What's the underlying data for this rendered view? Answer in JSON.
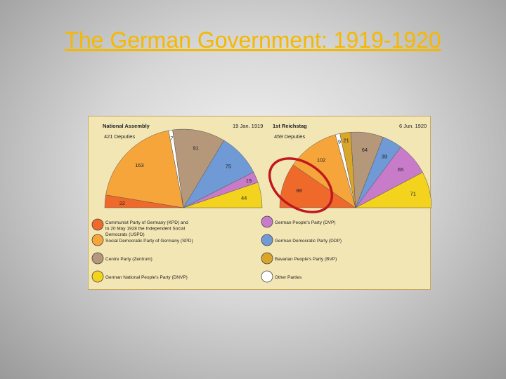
{
  "slide": {
    "title": "The German Government: 1919-1920"
  },
  "chart_data": [
    {
      "type": "pie",
      "shape": "semicircle",
      "title": "National Assembly",
      "date": "19 Jan. 1919",
      "total_label": "421 Deputies",
      "slices": [
        {
          "party": "KPD/USPD",
          "value": 22,
          "label": "22",
          "color": "#ef6a2a"
        },
        {
          "party": "SPD",
          "value": 163,
          "label": "163",
          "color": "#f6a53a"
        },
        {
          "party": "Other Parties",
          "value": 7,
          "label": "7",
          "color": "#ffffff"
        },
        {
          "party": "Centre Party (Zentrum)",
          "value": 91,
          "label": "91",
          "color": "#b5977a"
        },
        {
          "party": "DDP",
          "value": 75,
          "label": "75",
          "color": "#6f9ad6"
        },
        {
          "party": "DVP",
          "value": 19,
          "label": "19",
          "color": "#c77bc9"
        },
        {
          "party": "DNVP",
          "value": 44,
          "label": "44",
          "color": "#f3d31d"
        }
      ]
    },
    {
      "type": "pie",
      "shape": "semicircle",
      "title": "1st Reichstag",
      "date": "6 Jun. 1920",
      "total_label": "459 Deputies",
      "slices": [
        {
          "party": "KPD/USPD",
          "value": 88,
          "label": "88",
          "color": "#ef6a2a"
        },
        {
          "party": "SPD",
          "value": 102,
          "label": "102",
          "color": "#f6a53a"
        },
        {
          "party": "Other Parties",
          "value": 9,
          "label": "9",
          "color": "#ffffff"
        },
        {
          "party": "BVP",
          "value": 21,
          "label": "21",
          "color": "#d9a52a"
        },
        {
          "party": "Centre Party (Zentrum)",
          "value": 64,
          "label": "64",
          "color": "#b5977a"
        },
        {
          "party": "DDP",
          "value": 39,
          "label": "39",
          "color": "#6f9ad6"
        },
        {
          "party": "DVP",
          "value": 65,
          "label": "65",
          "color": "#c77bc9"
        },
        {
          "party": "DNVP",
          "value": 71,
          "label": "71",
          "color": "#f3d31d"
        }
      ]
    }
  ],
  "legend": [
    {
      "label": "Communist Party of Germany (KPD) and to 20 May 1928 the Independent Social Democrats (USPD)",
      "lines": [
        "Communist Party of Germany (KPD) and",
        "to 20 May 1928 the Independent Social",
        "Democrats (USPD)"
      ],
      "color": "#ef6a2a",
      "column": "left"
    },
    {
      "label": "Social Democratic Party of Germany (SPD)",
      "lines": [
        "Social Democratic Party of Germany (SPD)"
      ],
      "color": "#f6a53a",
      "column": "left"
    },
    {
      "label": "Centre Party (Zentrum)",
      "lines": [
        "Centre Party (Zentrum)"
      ],
      "color": "#b5977a",
      "column": "left"
    },
    {
      "label": "German National People's Party (DNVP)",
      "lines": [
        "German National People's Party (DNVP)"
      ],
      "color": "#f3d31d",
      "column": "left"
    },
    {
      "label": "German People's Party (DVP)",
      "lines": [
        "German People's Party (DVP)"
      ],
      "color": "#c77bc9",
      "column": "right"
    },
    {
      "label": "German Democratic Party (DDP)",
      "lines": [
        "German Democratic Party (DDP)"
      ],
      "color": "#6f9ad6",
      "column": "right"
    },
    {
      "label": "Bavarian People's Party (BVP)",
      "lines": [
        "Bavarian People's Party (BVP)"
      ],
      "color": "#d9a52a",
      "column": "right"
    },
    {
      "label": "Other Parties",
      "lines": [
        "Other Parties"
      ],
      "color": "#ffffff",
      "column": "right"
    }
  ],
  "highlight": {
    "target": "1st Reichstag: KPD/USPD slice",
    "color": "#c0181e"
  }
}
